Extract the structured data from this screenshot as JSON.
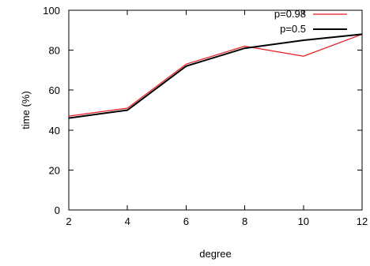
{
  "chart_data": {
    "type": "line",
    "title": "",
    "xlabel": "degree",
    "ylabel": "time (%)",
    "x": [
      2,
      4,
      6,
      8,
      10,
      12
    ],
    "xlim": [
      2,
      12
    ],
    "ylim": [
      0,
      100
    ],
    "x_ticks": [
      2,
      4,
      6,
      8,
      10,
      12
    ],
    "y_ticks": [
      0,
      20,
      40,
      60,
      80,
      100
    ],
    "x_tick_labels": [
      "2",
      "4",
      "6",
      "8",
      "10",
      "12"
    ],
    "y_tick_labels": [
      "0",
      "20",
      "40",
      "60",
      "80",
      "100"
    ],
    "grid": false,
    "legend_position": "top-right",
    "series": [
      {
        "name": "p=0.98",
        "color": "#e8191e",
        "values": [
          47,
          51,
          73,
          82,
          77,
          88
        ]
      },
      {
        "name": "p=0.5",
        "color": "#000000",
        "values": [
          46,
          50,
          72,
          81,
          85,
          88
        ]
      }
    ]
  }
}
